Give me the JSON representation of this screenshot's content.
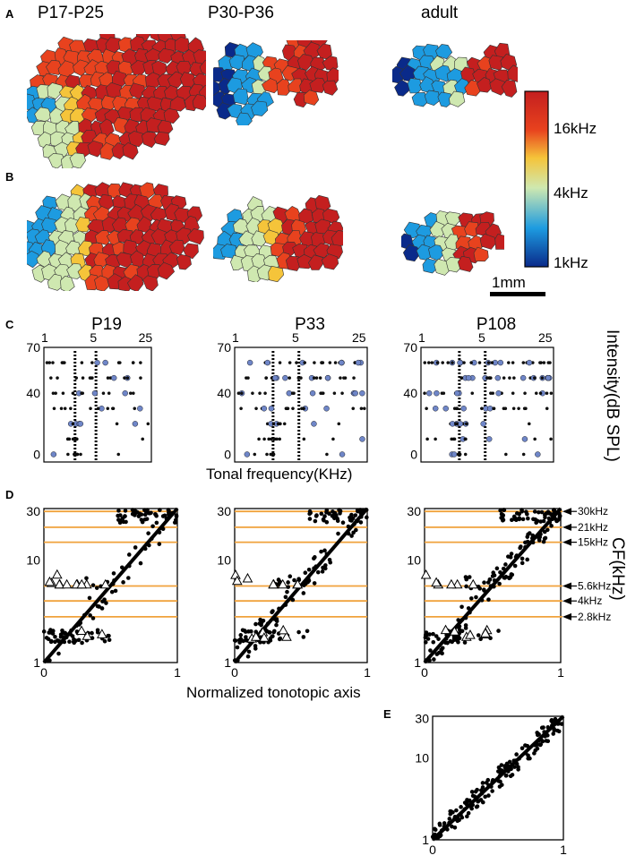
{
  "panels": {
    "A": "A",
    "B": "B",
    "C": "C",
    "D": "D",
    "E": "E"
  },
  "ages": [
    "P17-P25",
    "P30-P36",
    "adult"
  ],
  "colorbar": {
    "labels": [
      "16kHz",
      "4kHz",
      "1kHz"
    ],
    "colors": [
      "#0a2a8a",
      "#1d9be0",
      "#cfe8b0",
      "#f5c43a",
      "#e8421e",
      "#c41f1f"
    ]
  },
  "scalebar": {
    "label": "1mm"
  },
  "panel_C": {
    "titles": [
      "P19",
      "P33",
      "P108"
    ],
    "x_ticks": [
      "1",
      "5",
      "25"
    ],
    "y_ticks": [
      "70",
      "40",
      "0"
    ],
    "xlabel": "Tonal frequency(KHz)",
    "ylabel": "Intensity(dB SPL)"
  },
  "panel_D": {
    "y_ticks": [
      "30",
      "10",
      "1"
    ],
    "x_ticks": [
      "0",
      "1"
    ],
    "xlabel": "Normalized tonotopic axis",
    "ylabel": "CF(kHz)",
    "cf_labels": [
      "30kHz",
      "21kHz",
      "15kHz",
      "5.6kHz",
      "4kHz",
      "2.8kHz"
    ]
  },
  "chart_data": [
    {
      "type": "scatter",
      "title": "P19",
      "xlabel": "Tonal frequency(KHz)",
      "ylabel": "Intensity(dB SPL)",
      "x_scale": "log",
      "xlim": [
        1,
        35
      ],
      "ylim": [
        -5,
        70
      ],
      "dashed_lines_khz": [
        2.8,
        5.6
      ]
    },
    {
      "type": "scatter",
      "title": "P33",
      "xlabel": "Tonal frequency(KHz)",
      "ylabel": "Intensity(dB SPL)",
      "x_scale": "log",
      "xlim": [
        1,
        35
      ],
      "ylim": [
        -5,
        70
      ],
      "dashed_lines_khz": [
        2.8,
        5.6
      ]
    },
    {
      "type": "scatter",
      "title": "P108",
      "xlabel": "Tonal frequency(KHz)",
      "ylabel": "Intensity(dB SPL)",
      "x_scale": "log",
      "xlim": [
        1,
        35
      ],
      "ylim": [
        -5,
        70
      ],
      "dashed_lines_khz": [
        2.8,
        5.6
      ]
    },
    {
      "type": "scatter",
      "xlabel": "Normalized tonotopic axis",
      "ylabel": "CF(kHz)",
      "y_scale": "log",
      "xlim": [
        0,
        1
      ],
      "ylim": [
        1,
        32
      ],
      "reference_lines_khz": [
        30,
        21,
        15,
        5.6,
        4,
        2.8
      ],
      "diagonal": true
    },
    {
      "type": "scatter",
      "xlabel": "Normalized tonotopic axis",
      "ylabel": "CF(kHz)",
      "y_scale": "log",
      "xlim": [
        0,
        1
      ],
      "ylim": [
        1,
        32
      ],
      "reference_lines_khz": [
        30,
        21,
        15,
        5.6,
        4,
        2.8
      ],
      "diagonal": true
    },
    {
      "type": "scatter",
      "xlabel": "Normalized tonotopic axis",
      "ylabel": "CF(kHz)",
      "y_scale": "log",
      "xlim": [
        0,
        1
      ],
      "ylim": [
        1,
        32
      ],
      "reference_lines_khz": [
        30,
        21,
        15,
        5.6,
        4,
        2.8
      ],
      "diagonal": true
    },
    {
      "type": "scatter",
      "y_scale": "log",
      "xlim": [
        0,
        1
      ],
      "ylim": [
        1,
        32
      ],
      "y_ticks": [
        "30",
        "10",
        "1"
      ],
      "x_ticks": [
        "0",
        "1"
      ],
      "diagonal": true
    }
  ]
}
